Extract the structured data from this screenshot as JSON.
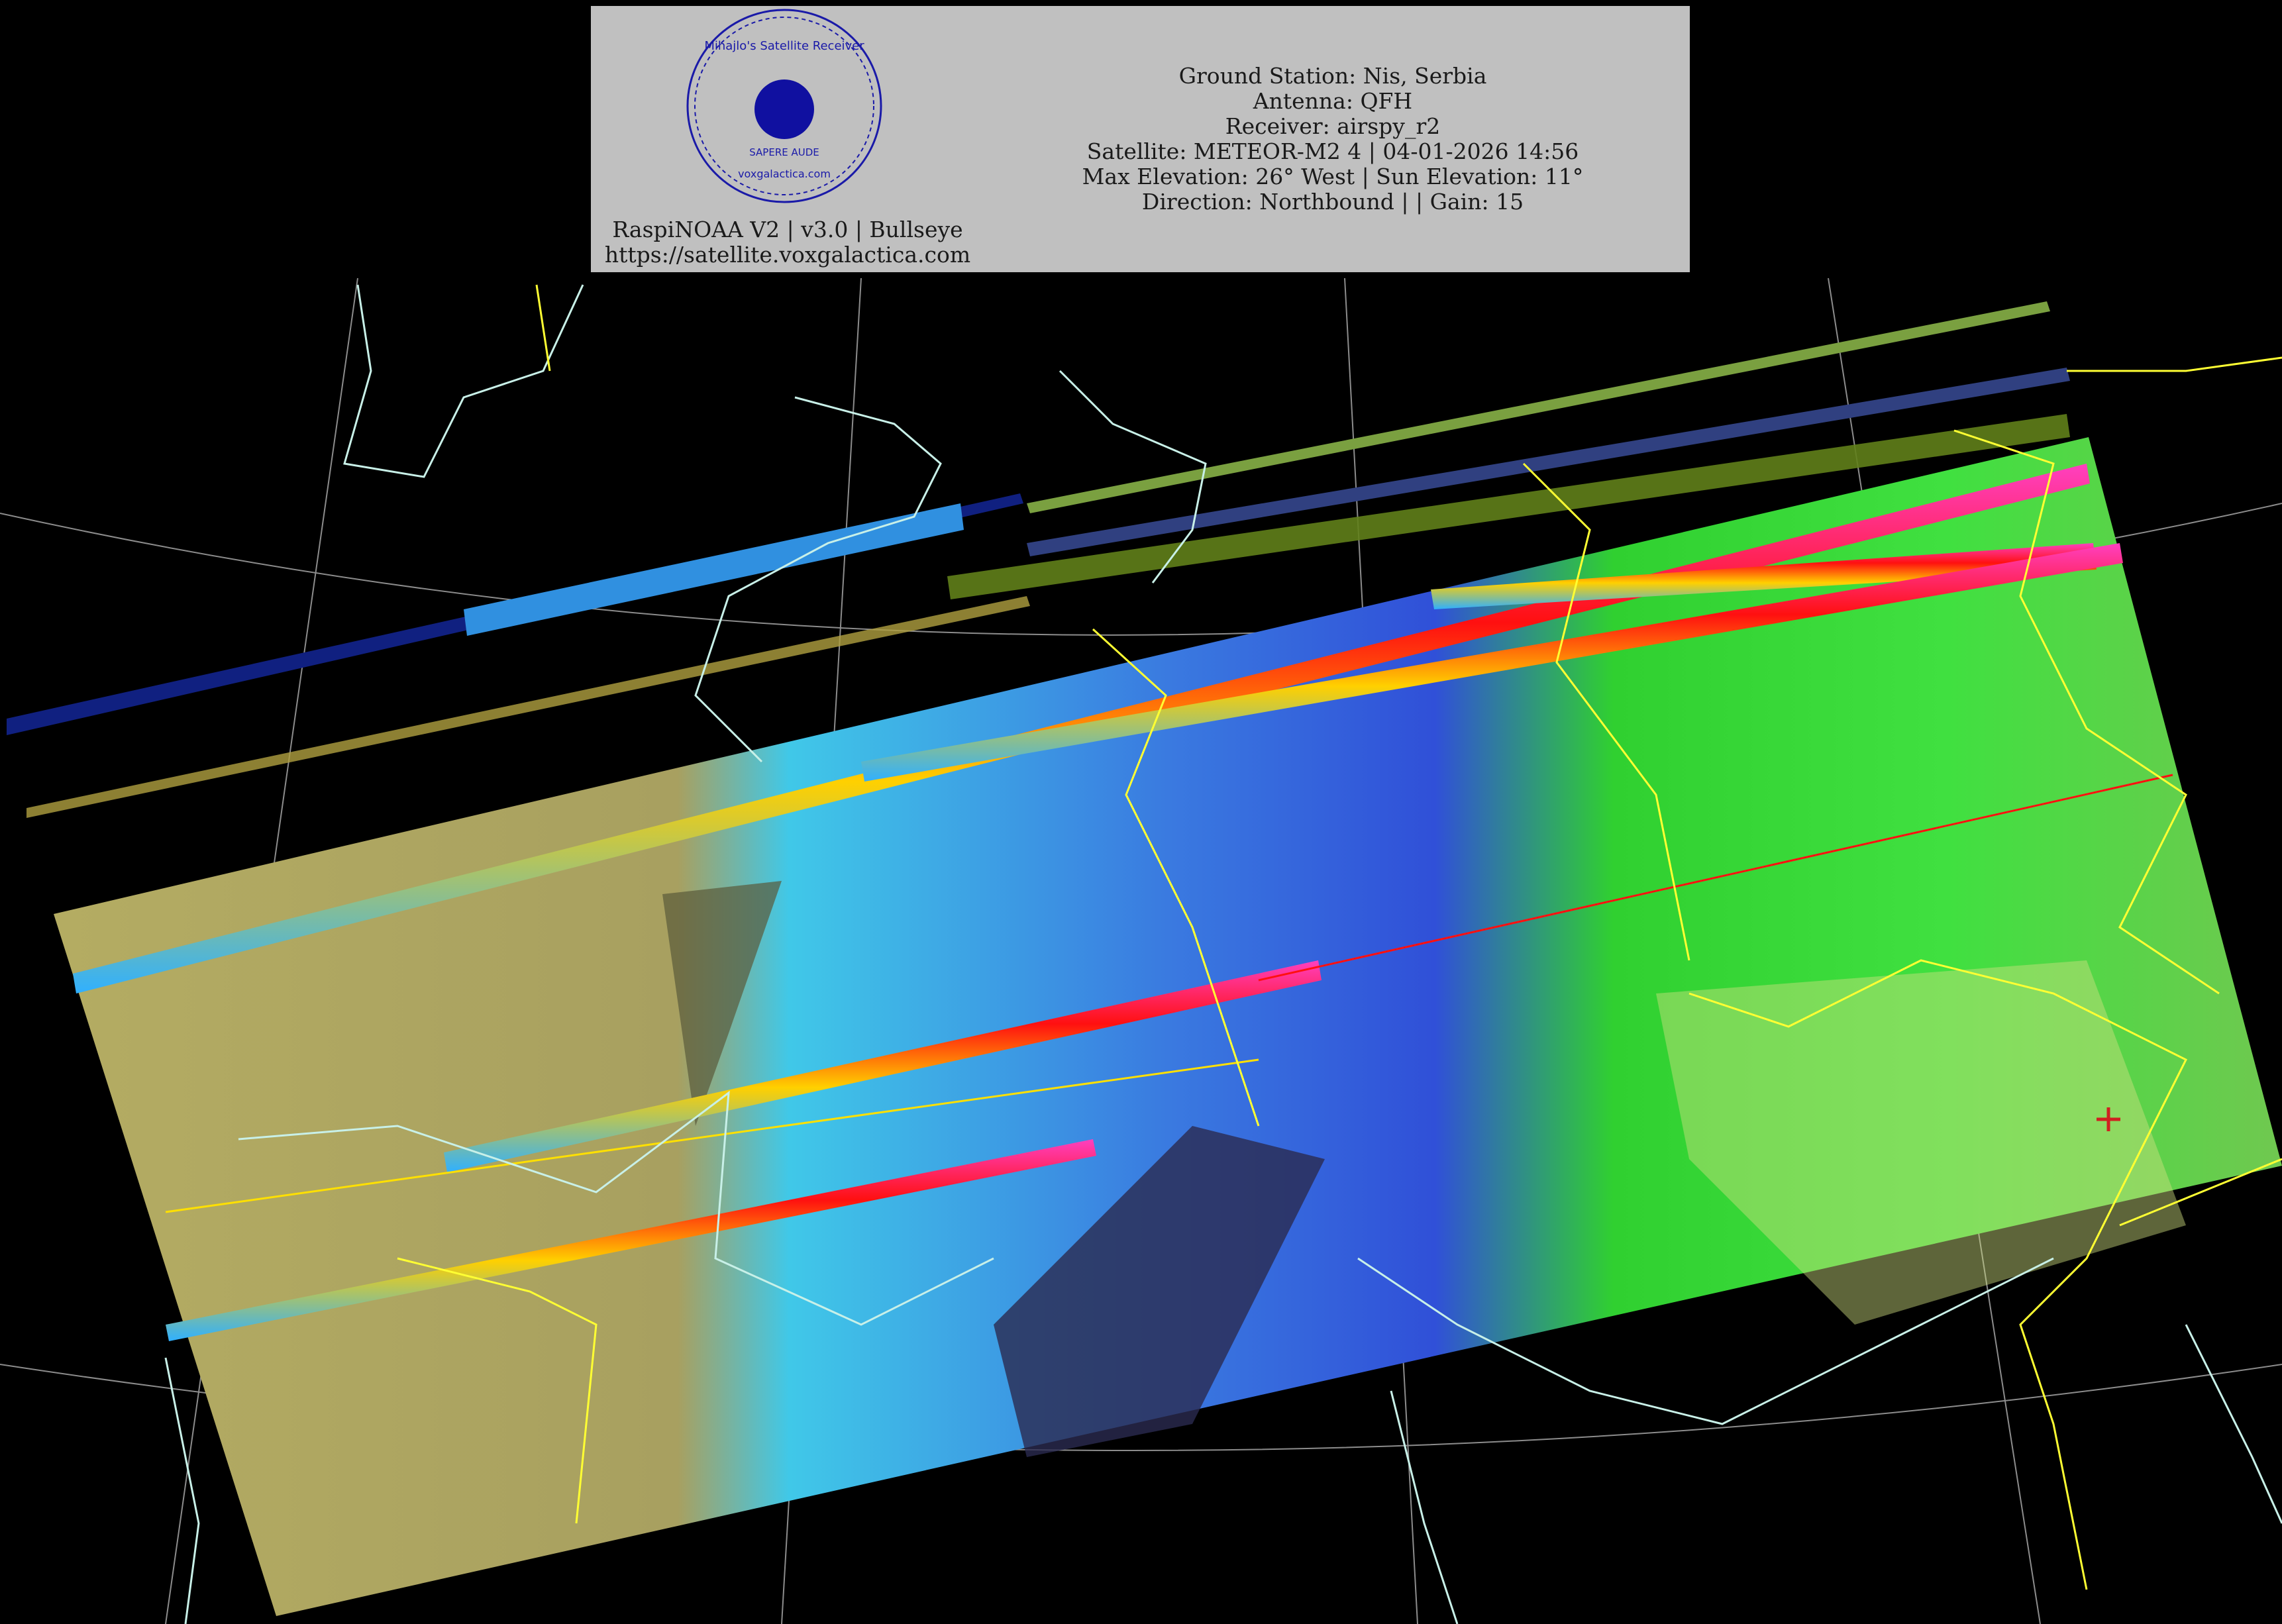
{
  "header": {
    "station_lines": [
      "Ground Station: Nis, Serbia",
      "Antenna: QFH",
      "Receiver: airspy_r2",
      "Satellite: METEOR-M2 4 | 04-01-2026 14:56",
      "Max Elevation: 26° West | Sun Elevation: 11°",
      "Direction: Northbound | | Gain: 15"
    ],
    "software_line": "RaspiNOAA V2 | v3.0 | Bullseye",
    "url_line": "https://satellite.voxgalactica.com",
    "logo": {
      "ring_text_top": "Mihajlo's Satellite Receiver",
      "ring_text_mid": "SAPERE AUDE",
      "ring_text_bottom": "voxgalactica.com",
      "color": "#1a1aa8"
    },
    "background": "#c0c0c0"
  },
  "map": {
    "background": "#000000",
    "coastline_color": "#c8f0e8",
    "border_color": "#ffff33",
    "graticule_color": "#c8c8c8",
    "ground_station_marker": "red-cross",
    "marker_color": "#d02020"
  }
}
